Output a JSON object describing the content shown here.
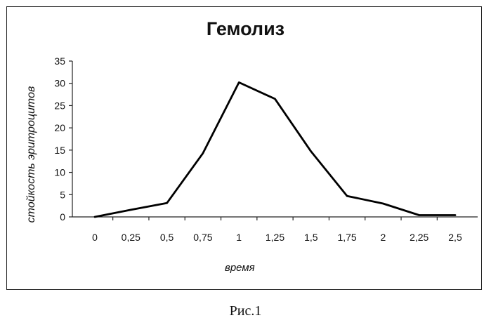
{
  "chart_data": {
    "type": "line",
    "title": "Гемолиз",
    "xlabel": "время",
    "ylabel": "стойкость эритроцитов",
    "categories": [
      "0",
      "0,25",
      "0,5",
      "0,75",
      "1",
      "1,25",
      "1,5",
      "1,75",
      "2",
      "2,25",
      "2,5"
    ],
    "x": [
      0,
      0.25,
      0.5,
      0.75,
      1,
      1.25,
      1.5,
      1.75,
      2,
      2.25,
      2.5
    ],
    "values": [
      0,
      1.6,
      3.1,
      14.3,
      30.2,
      26.5,
      14.7,
      4.7,
      3.0,
      0.4,
      0.4
    ],
    "yticks": [
      "0",
      "5",
      "10",
      "15",
      "20",
      "25",
      "30",
      "35"
    ],
    "ylim": [
      0,
      35
    ],
    "grid": false,
    "legend": "none",
    "line_color": "#000000"
  },
  "caption": "Рис.1"
}
